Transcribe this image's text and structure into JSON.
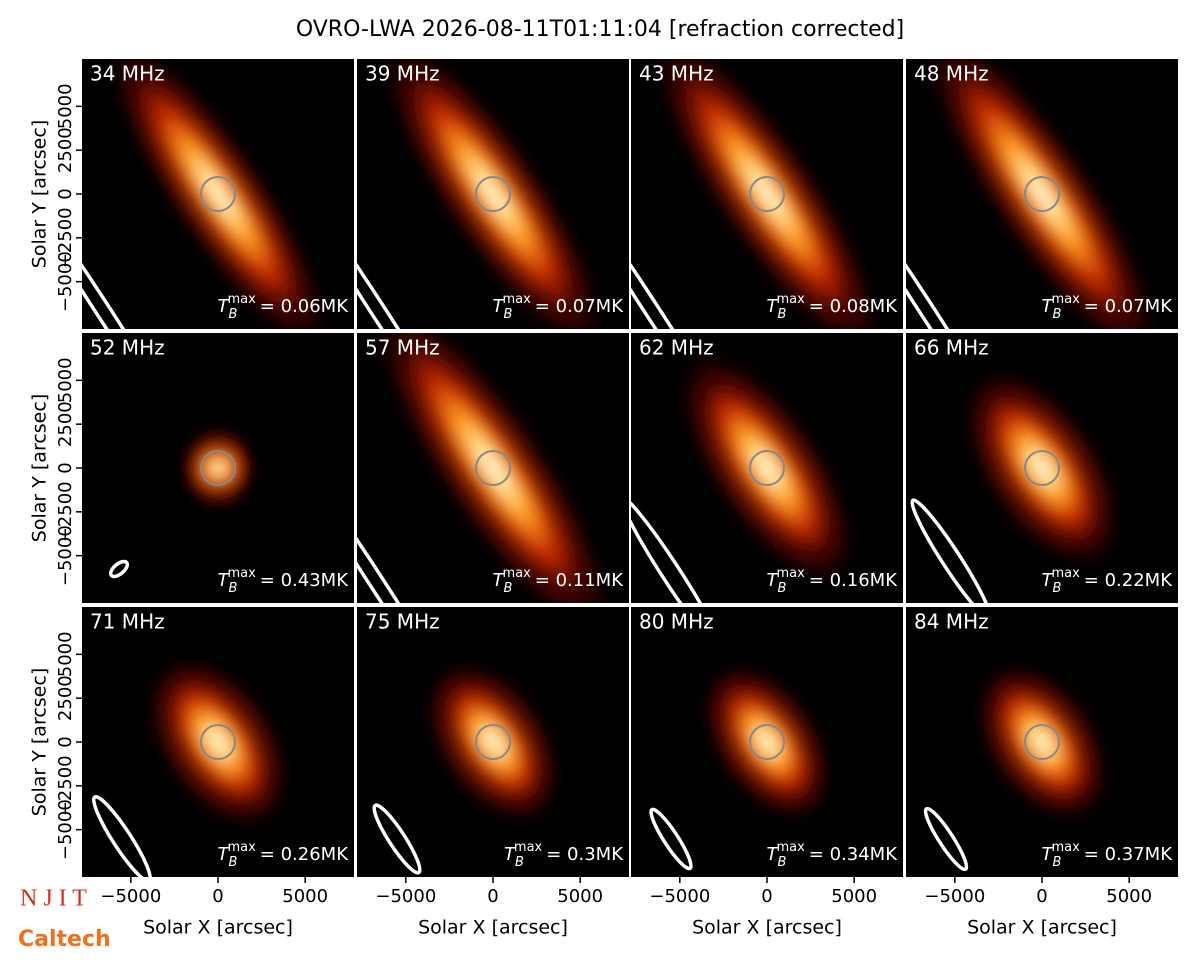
{
  "chart_data": {
    "type": "image",
    "title": "OVRO-LWA 2026-08-11T01:11:04 [refraction corrected]",
    "xlabel": "Solar X [arcsec]",
    "ylabel": "Solar Y [arcsec]",
    "xlim": [
      -7800,
      7800
    ],
    "ylim": [
      -7700,
      7700
    ],
    "xticks": [
      {
        "value": -5000,
        "label": "−5000"
      },
      0,
      5000
    ],
    "yticks": [
      {
        "value": -5000,
        "label": "−5000"
      },
      {
        "value": -2500,
        "label": "−2500"
      },
      0,
      2500,
      5000
    ],
    "tb_symbol": "T",
    "tb_sub": "B",
    "tb_sup": "max",
    "panels": [
      {
        "title": "34 MHz",
        "tbmax": "= 0.06MK"
      },
      {
        "title": "39 MHz",
        "tbmax": "= 0.07MK"
      },
      {
        "title": "43 MHz",
        "tbmax": "= 0.08MK"
      },
      {
        "title": "48 MHz",
        "tbmax": "= 0.07MK"
      },
      {
        "title": "52 MHz",
        "tbmax": "= 0.43MK"
      },
      {
        "title": "57 MHz",
        "tbmax": "= 0.11MK"
      },
      {
        "title": "62 MHz",
        "tbmax": "= 0.16MK"
      },
      {
        "title": "66 MHz",
        "tbmax": "= 0.22MK"
      },
      {
        "title": "71 MHz",
        "tbmax": "= 0.26MK"
      },
      {
        "title": "75 MHz",
        "tbmax": "= 0.3MK"
      },
      {
        "title": "80 MHz",
        "tbmax": "= 0.34MK"
      },
      {
        "title": "84 MHz",
        "tbmax": "= 0.37MK"
      }
    ]
  },
  "logos": [
    "N J I T",
    "Caltech"
  ]
}
